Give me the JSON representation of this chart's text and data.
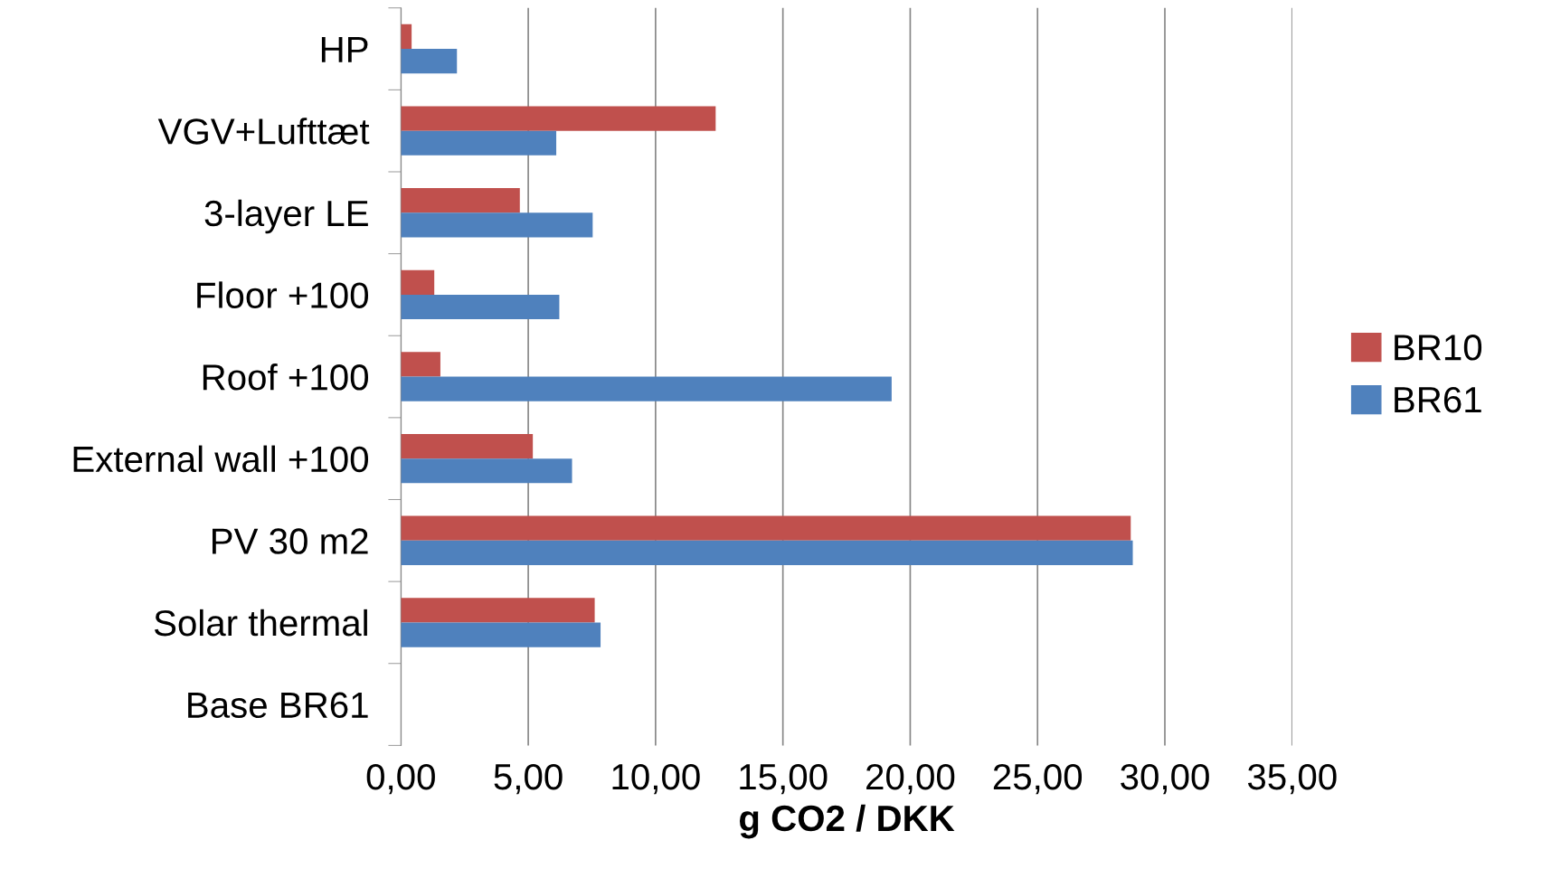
{
  "chart_data": {
    "type": "bar",
    "orientation": "horizontal",
    "xlabel": "g CO2 / DKK",
    "categories": [
      "HP",
      "VGV+Lufttæt",
      "3-layer LE",
      "Floor +100",
      "Roof +100",
      "External wall +100",
      "PV 30 m2",
      "Solar thermal",
      "Base BR61"
    ],
    "series": [
      {
        "name": "BR10",
        "color": "#c0504d",
        "values": [
          0.42,
          12.36,
          4.67,
          1.31,
          1.55,
          5.18,
          28.66,
          7.61,
          0
        ]
      },
      {
        "name": "BR61",
        "color": "#4f81bd",
        "values": [
          2.2,
          6.1,
          7.53,
          6.22,
          19.27,
          6.72,
          28.74,
          7.84,
          0
        ]
      }
    ],
    "xlim": [
      0,
      35
    ],
    "xticks": [
      {
        "value": 0,
        "label": "0,00"
      },
      {
        "value": 5,
        "label": "5,00"
      },
      {
        "value": 10,
        "label": "10,00"
      },
      {
        "value": 15,
        "label": "15,00"
      },
      {
        "value": 20,
        "label": "20,00"
      },
      {
        "value": 25,
        "label": "25,00"
      },
      {
        "value": 30,
        "label": "30,00"
      },
      {
        "value": 35,
        "label": "35,00"
      }
    ],
    "grid": "x",
    "legend": "right"
  }
}
